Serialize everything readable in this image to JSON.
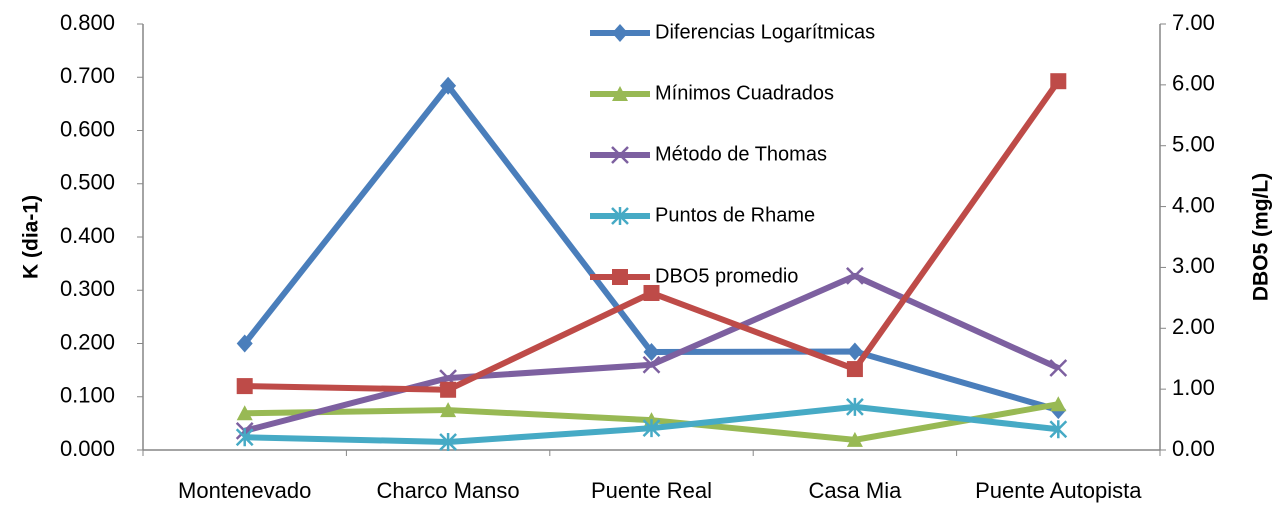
{
  "chart_data": {
    "type": "line",
    "categories": [
      "Montenevado",
      "Charco Manso",
      "Puente Real",
      "Casa Mia",
      "Puente Autopista"
    ],
    "ylabel": "K (dia-1)",
    "y2label": "DBO5 (mg/L)",
    "ylim": [
      0,
      0.8
    ],
    "yticks": [
      {
        "value": 0,
        "label": "0.000"
      },
      {
        "value": 0.1,
        "label": "0.100"
      },
      {
        "value": 0.2,
        "label": "0.200"
      },
      {
        "value": 0.3,
        "label": "0.300"
      },
      {
        "value": 0.4,
        "label": "0.400"
      },
      {
        "value": 0.5,
        "label": "0.500"
      },
      {
        "value": 0.6,
        "label": "0.600"
      },
      {
        "value": 0.7,
        "label": "0.700"
      },
      {
        "value": 0.8,
        "label": "0.800"
      }
    ],
    "y2lim": [
      0,
      7
    ],
    "y2ticks": [
      {
        "value": 0,
        "label": "0.00"
      },
      {
        "value": 1,
        "label": "1.00"
      },
      {
        "value": 2,
        "label": "2.00"
      },
      {
        "value": 3,
        "label": "3.00"
      },
      {
        "value": 4,
        "label": "4.00"
      },
      {
        "value": 5,
        "label": "5.00"
      },
      {
        "value": 6,
        "label": "6.00"
      },
      {
        "value": 7,
        "label": "7.00"
      }
    ],
    "series": [
      {
        "name": "Diferencias Logarítmicas",
        "color": "#4a7ebb",
        "marker": "diamond",
        "values": [
          0.2,
          0.684,
          0.184,
          0.185,
          0.075
        ]
      },
      {
        "name": "Mínimos Cuadrados",
        "color": "#98b954",
        "marker": "triangle",
        "values": [
          0.069,
          0.075,
          0.056,
          0.019,
          0.086
        ]
      },
      {
        "name": "Método de Thomas",
        "color": "#7d60a0",
        "marker": "x",
        "values": [
          0.036,
          0.135,
          0.16,
          0.327,
          0.154
        ]
      },
      {
        "name": "Puntos de Rhame",
        "color": "#46aac5",
        "marker": "star",
        "values": [
          0.024,
          0.015,
          0.041,
          0.081,
          0.039
        ]
      },
      {
        "name": "DBO5 promedio",
        "color": "#be4b48",
        "marker": "square",
        "axis": "y2",
        "values": [
          1.05,
          0.99,
          2.58,
          1.33,
          6.06
        ]
      }
    ],
    "grid": false
  }
}
